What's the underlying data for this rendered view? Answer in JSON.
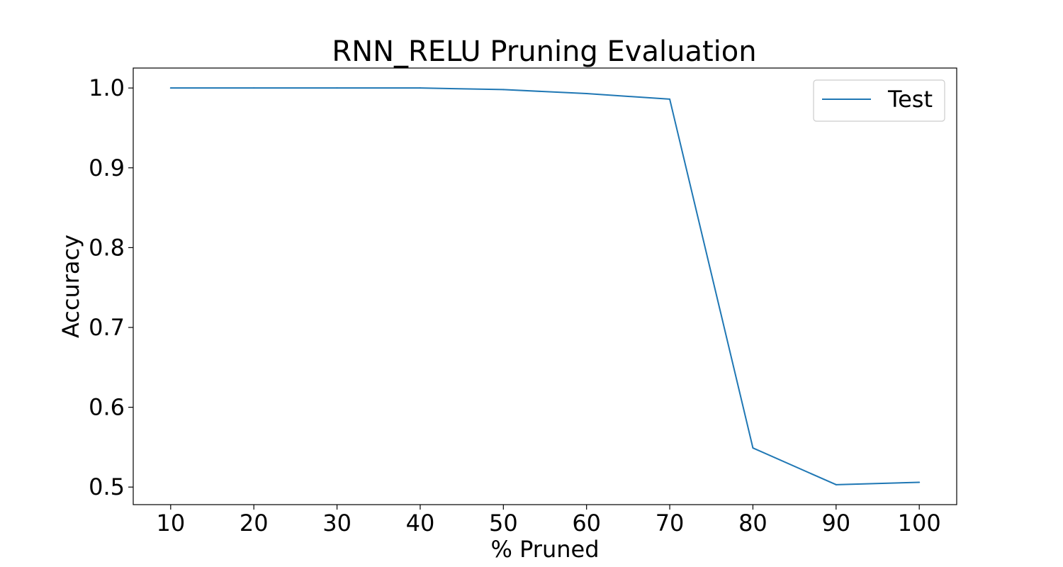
{
  "chart_data": {
    "type": "line",
    "title": "RNN_RELU Pruning Evaluation",
    "xlabel": "% Pruned",
    "ylabel": "Accuracy",
    "x": [
      10,
      20,
      30,
      40,
      50,
      60,
      70,
      80,
      90,
      100
    ],
    "series": [
      {
        "name": "Test",
        "color": "#1f77b4",
        "values": [
          1.0,
          1.0,
          1.0,
          1.0,
          0.998,
          0.993,
          0.986,
          0.549,
          0.503,
          0.506
        ]
      }
    ],
    "xticks": [
      "10",
      "20",
      "30",
      "40",
      "50",
      "60",
      "70",
      "80",
      "90",
      "100"
    ],
    "yticks": [
      "0.5",
      "0.6",
      "0.7",
      "0.8",
      "0.9",
      "1.0"
    ],
    "xlim": [
      5.5,
      104.5
    ],
    "ylim": [
      0.478,
      1.025
    ],
    "grid": false,
    "legend_position": "top-right"
  }
}
